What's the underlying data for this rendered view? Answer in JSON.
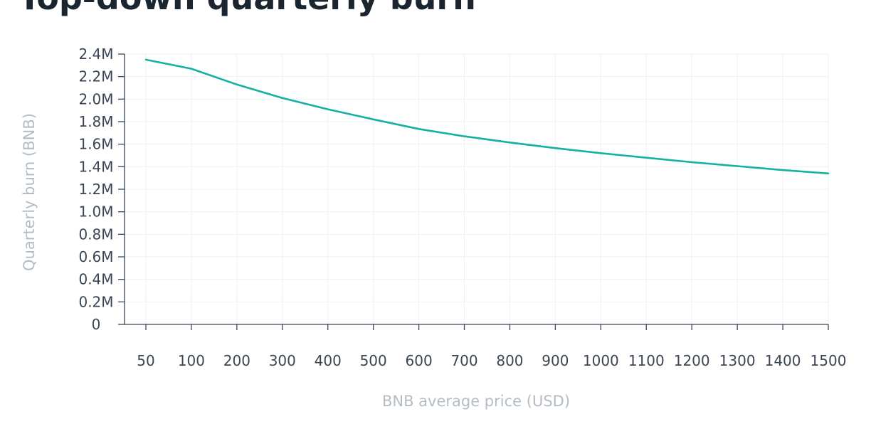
{
  "chart_data": {
    "type": "line",
    "title": "Top-down quarterly burn",
    "xlabel": "BNB average price (USD)",
    "ylabel": "Quarterly burn (BNB)",
    "x_categories": [
      "50",
      "100",
      "200",
      "300",
      "400",
      "500",
      "600",
      "700",
      "800",
      "900",
      "1000",
      "1100",
      "1200",
      "1300",
      "1400",
      "1500"
    ],
    "y_ticks": [
      {
        "value": 0,
        "label": "0"
      },
      {
        "value": 200000,
        "label": "0.2M"
      },
      {
        "value": 400000,
        "label": "0.4M"
      },
      {
        "value": 600000,
        "label": "0.6M"
      },
      {
        "value": 800000,
        "label": "0.8M"
      },
      {
        "value": 1000000,
        "label": "1.0M"
      },
      {
        "value": 1200000,
        "label": "1.2M"
      },
      {
        "value": 1400000,
        "label": "1.4M"
      },
      {
        "value": 1600000,
        "label": "1.6M"
      },
      {
        "value": 1800000,
        "label": "1.8M"
      },
      {
        "value": 2000000,
        "label": "2.0M"
      },
      {
        "value": 2200000,
        "label": "2.2M"
      },
      {
        "value": 2400000,
        "label": "2.4M"
      }
    ],
    "ylim": [
      0,
      2400000
    ],
    "grid": true,
    "legend": "none",
    "series": [
      {
        "values": [
          2350000,
          2270000,
          2130000,
          2010000,
          1910000,
          1820000,
          1735000,
          1670000,
          1615000,
          1565000,
          1520000,
          1480000,
          1440000,
          1405000,
          1370000,
          1340000
        ],
        "color": "#14b1a0"
      }
    ],
    "colors": {
      "line": "#14b1a0",
      "grid": "#eef0f2",
      "axis": "#3a4653",
      "tick_text": "#3a4653",
      "axis_title": "#b4bcc3",
      "title_text": "#1b2530"
    }
  }
}
